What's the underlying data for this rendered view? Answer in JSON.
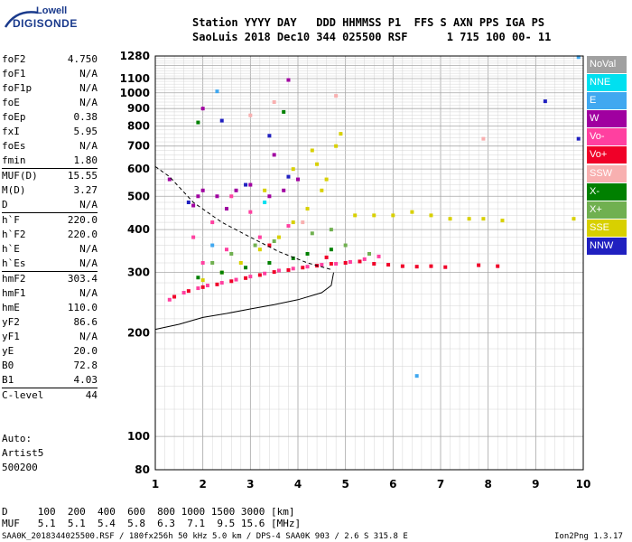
{
  "logo": {
    "line1": "Lowell",
    "line2": "DIGISONDE"
  },
  "header": {
    "line1": "Station YYYY DAY   DDD HHMMSS P1  FFS S AXN PPS IGA PS",
    "line2": "SaoLuis 2018 Dec10 344 025500 RSF      1 715 100 00- 11"
  },
  "params_group1": [
    {
      "name": "foF2",
      "value": "4.750"
    },
    {
      "name": "foF1",
      "value": "N/A"
    },
    {
      "name": "foF1p",
      "value": "N/A"
    },
    {
      "name": "foE",
      "value": "N/A"
    },
    {
      "name": "foEp",
      "value": "0.38"
    },
    {
      "name": "fxI",
      "value": "5.95"
    },
    {
      "name": "foEs",
      "value": "N/A"
    },
    {
      "name": "fmin",
      "value": "1.80"
    }
  ],
  "params_group2": [
    {
      "name": "MUF(D)",
      "value": "15.55"
    },
    {
      "name": "M(D)",
      "value": "3.27"
    },
    {
      "name": "D",
      "value": "N/A"
    }
  ],
  "params_group3": [
    {
      "name": "h`F",
      "value": "220.0"
    },
    {
      "name": "h`F2",
      "value": "220.0"
    },
    {
      "name": "h`E",
      "value": "N/A"
    },
    {
      "name": "h`Es",
      "value": "N/A"
    }
  ],
  "params_group4": [
    {
      "name": "hmF2",
      "value": "303.4"
    },
    {
      "name": "hmF1",
      "value": "N/A"
    },
    {
      "name": "hmE",
      "value": "110.0"
    },
    {
      "name": "yF2",
      "value": "86.6"
    },
    {
      "name": "yF1",
      "value": "N/A"
    },
    {
      "name": "yE",
      "value": "20.0"
    },
    {
      "name": "B0",
      "value": "72.8"
    },
    {
      "name": "B1",
      "value": "4.03"
    }
  ],
  "params_group5": [
    {
      "name": "C-level",
      "value": "44"
    }
  ],
  "auto": {
    "line1": "Auto:",
    "line2": "Artist5",
    "line3": "500200"
  },
  "bottom": {
    "d_line": "D     100  200  400  600  800 1000 1500 3000 [km]",
    "muf_line": "MUF   5.1  5.1  5.4  5.8  6.3  7.1  9.5 15.6 [MHz]",
    "footer_left": "SAA0K_2018344025500.RSF / 180fx256h 50 kHz 5.0 km / DPS-4 SAA0K 903 / 2.6 S 315.8 E",
    "footer_right": "Ion2Png 1.3.17"
  },
  "legend": [
    {
      "label": "NoVal",
      "color": "#a0a0a0"
    },
    {
      "label": "NNE",
      "color": "#00e0f0"
    },
    {
      "label": "E",
      "color": "#40a8f0"
    },
    {
      "label": "W",
      "color": "#a000a0"
    },
    {
      "label": "Vo-",
      "color": "#ff40a0"
    },
    {
      "label": "Vo+",
      "color": "#f00028"
    },
    {
      "label": "SSW",
      "color": "#f8b0b0"
    },
    {
      "label": "X-",
      "color": "#008000"
    },
    {
      "label": "X+",
      "color": "#70b050"
    },
    {
      "label": "SSE",
      "color": "#d8d000"
    },
    {
      "label": "NNW",
      "color": "#2020c0"
    }
  ],
  "chart_data": {
    "type": "scatter",
    "x_ticks": [
      "1",
      "2",
      "3",
      "4",
      "5",
      "6",
      "7",
      "8",
      "9",
      "10"
    ],
    "y_ticks": [
      "80",
      "100",
      "200",
      "300",
      "400",
      "500",
      "600",
      "700",
      "800",
      "900",
      "1000",
      "1100",
      "1280"
    ],
    "xlim": [
      1,
      10
    ],
    "ylim": [
      80,
      1280
    ],
    "y_scale": "log",
    "series": [
      {
        "color": "#ff40a0",
        "points": [
          [
            1.3,
            250
          ],
          [
            1.6,
            262
          ],
          [
            1.9,
            270
          ],
          [
            2.1,
            275
          ],
          [
            2.4,
            280
          ],
          [
            2.7,
            286
          ],
          [
            3.0,
            292
          ],
          [
            3.3,
            298
          ],
          [
            3.6,
            304
          ],
          [
            3.9,
            308
          ],
          [
            4.2,
            312
          ],
          [
            4.5,
            316
          ],
          [
            4.8,
            318
          ],
          [
            5.1,
            322
          ],
          [
            5.4,
            328
          ],
          [
            5.7,
            334
          ],
          [
            2.0,
            320
          ],
          [
            2.5,
            350
          ],
          [
            3.2,
            380
          ],
          [
            3.8,
            410
          ],
          [
            3.0,
            450
          ],
          [
            2.6,
            500
          ],
          [
            1.8,
            380
          ],
          [
            2.2,
            420
          ]
        ]
      },
      {
        "color": "#f00028",
        "points": [
          [
            1.4,
            255
          ],
          [
            1.7,
            265
          ],
          [
            2.0,
            272
          ],
          [
            2.3,
            277
          ],
          [
            2.6,
            283
          ],
          [
            2.9,
            289
          ],
          [
            3.2,
            295
          ],
          [
            3.5,
            301
          ],
          [
            3.8,
            305
          ],
          [
            4.1,
            310
          ],
          [
            4.4,
            314
          ],
          [
            4.7,
            318
          ],
          [
            5.0,
            320
          ],
          [
            5.3,
            323
          ],
          [
            5.6,
            318
          ],
          [
            5.9,
            316
          ],
          [
            6.2,
            313
          ],
          [
            6.5,
            312
          ],
          [
            6.8,
            313
          ],
          [
            7.1,
            311
          ],
          [
            7.8,
            315
          ],
          [
            8.2,
            313
          ],
          [
            3.4,
            360
          ],
          [
            4.6,
            332
          ]
        ]
      },
      {
        "color": "#d8d000",
        "points": [
          [
            2.0,
            285
          ],
          [
            2.4,
            300
          ],
          [
            2.8,
            320
          ],
          [
            3.2,
            350
          ],
          [
            3.6,
            380
          ],
          [
            3.9,
            420
          ],
          [
            4.2,
            460
          ],
          [
            4.5,
            520
          ],
          [
            4.6,
            560
          ],
          [
            4.4,
            620
          ],
          [
            4.3,
            680
          ],
          [
            4.8,
            700
          ],
          [
            4.9,
            760
          ],
          [
            5.2,
            440
          ],
          [
            5.6,
            440
          ],
          [
            6.0,
            440
          ],
          [
            6.4,
            450
          ],
          [
            6.8,
            440
          ],
          [
            7.2,
            430
          ],
          [
            7.6,
            430
          ],
          [
            7.9,
            430
          ],
          [
            8.3,
            425
          ],
          [
            9.8,
            430
          ],
          [
            3.3,
            520
          ],
          [
            3.9,
            600
          ]
        ]
      },
      {
        "color": "#a000a0",
        "points": [
          [
            1.8,
            470
          ],
          [
            1.9,
            500
          ],
          [
            2.0,
            520
          ],
          [
            2.3,
            500
          ],
          [
            2.7,
            520
          ],
          [
            3.0,
            540
          ],
          [
            3.4,
            500
          ],
          [
            3.7,
            520
          ],
          [
            4.0,
            560
          ],
          [
            2.5,
            460
          ],
          [
            3.8,
            1090
          ],
          [
            1.3,
            560
          ],
          [
            2.0,
            900
          ],
          [
            3.5,
            660
          ]
        ]
      },
      {
        "color": "#008000",
        "points": [
          [
            1.9,
            290
          ],
          [
            2.4,
            300
          ],
          [
            2.9,
            310
          ],
          [
            3.4,
            320
          ],
          [
            3.9,
            330
          ],
          [
            4.2,
            340
          ],
          [
            4.7,
            350
          ],
          [
            1.9,
            820
          ],
          [
            3.7,
            880
          ]
        ]
      },
      {
        "color": "#70b050",
        "points": [
          [
            2.2,
            320
          ],
          [
            2.6,
            340
          ],
          [
            3.1,
            360
          ],
          [
            3.5,
            370
          ],
          [
            4.3,
            390
          ],
          [
            4.7,
            400
          ],
          [
            5.0,
            360
          ],
          [
            5.5,
            340
          ]
        ]
      },
      {
        "color": "#2020c0",
        "points": [
          [
            2.4,
            830
          ],
          [
            3.4,
            750
          ],
          [
            3.8,
            570
          ],
          [
            9.2,
            945
          ],
          [
            9.9,
            735
          ],
          [
            2.9,
            540
          ],
          [
            1.7,
            480
          ]
        ]
      },
      {
        "color": "#40a8f0",
        "points": [
          [
            2.3,
            1010
          ],
          [
            6.5,
            150
          ],
          [
            9.9,
            1270
          ],
          [
            2.2,
            360
          ]
        ]
      },
      {
        "color": "#f8b0b0",
        "points": [
          [
            3.5,
            940
          ],
          [
            4.8,
            980
          ],
          [
            7.9,
            735
          ],
          [
            3.0,
            860
          ],
          [
            4.1,
            420
          ]
        ]
      },
      {
        "color": "#00e0f0",
        "points": [
          [
            3.3,
            480
          ]
        ]
      }
    ],
    "trace_curve": [
      [
        1.0,
        205
      ],
      [
        1.5,
        212
      ],
      [
        2.0,
        222
      ],
      [
        2.5,
        228
      ],
      [
        3.0,
        235
      ],
      [
        3.5,
        242
      ],
      [
        4.0,
        250
      ],
      [
        4.5,
        262
      ],
      [
        4.7,
        275
      ],
      [
        4.75,
        300
      ]
    ],
    "profile_curve": [
      [
        1.0,
        610
      ],
      [
        1.3,
        570
      ],
      [
        1.8,
        480
      ],
      [
        2.4,
        420
      ],
      [
        3.0,
        380
      ],
      [
        3.6,
        345
      ],
      [
        4.2,
        320
      ],
      [
        4.7,
        306
      ]
    ]
  }
}
